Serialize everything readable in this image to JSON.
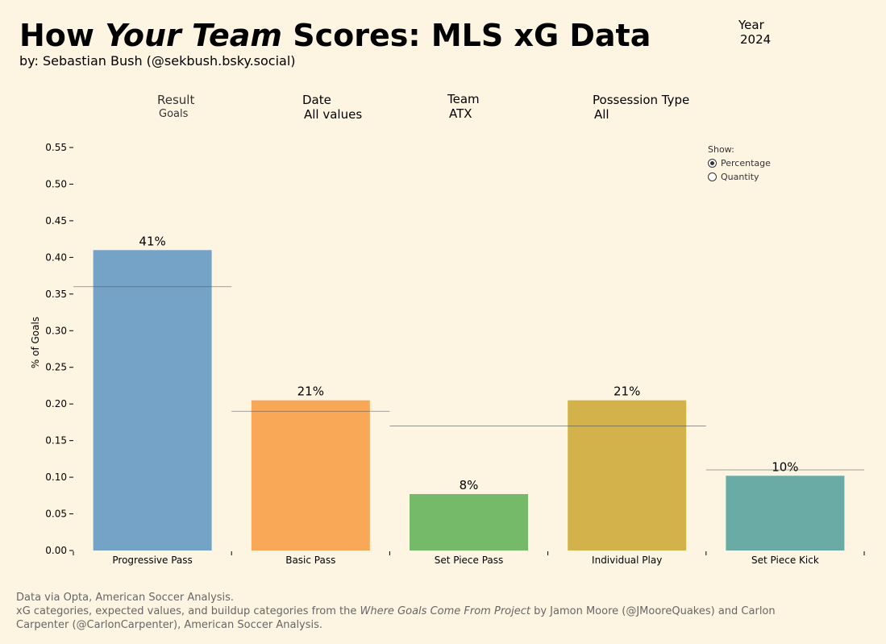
{
  "header": {
    "title_part1": "How ",
    "title_italic": "Your Team",
    "title_part2": "  Scores: MLS xG Data",
    "byline": "by: Sebastian Bush (@sekbush.bsky.social)"
  },
  "filters": {
    "year": {
      "label": "Year",
      "value": "2024"
    },
    "result": {
      "label": "Result",
      "value": "Goals"
    },
    "date": {
      "label": "Date",
      "value": "All values"
    },
    "team": {
      "label": "Team",
      "value": "ATX"
    },
    "possession": {
      "label": "Possession Type",
      "value": "All"
    }
  },
  "show_toggle": {
    "label": "Show:",
    "options": [
      "Percentage",
      "Quantity"
    ],
    "selected": "Percentage"
  },
  "chart_data": {
    "type": "bar",
    "ylabel": "% of Goals",
    "ylim": [
      0,
      0.55
    ],
    "yticks": [
      0.0,
      0.05,
      0.1,
      0.15,
      0.2,
      0.25,
      0.3,
      0.35,
      0.4,
      0.45,
      0.5,
      0.55
    ],
    "categories": [
      "Progressive Pass",
      "Basic Pass",
      "Set Piece Pass",
      "Individual Play",
      "Set Piece Kick"
    ],
    "values": [
      0.41,
      0.205,
      0.077,
      0.205,
      0.102
    ],
    "labels": [
      "41%",
      "21%",
      "8%",
      "21%",
      "10%"
    ],
    "colors": [
      "#75a3c8",
      "#f9a857",
      "#75ba68",
      "#d3b24b",
      "#6aaba6"
    ],
    "reference_lines": [
      {
        "from": 0,
        "to": 0,
        "value": 0.36
      },
      {
        "from": 1,
        "to": 1,
        "value": 0.19
      },
      {
        "from": 2,
        "to": 3,
        "value": 0.17
      },
      {
        "from": 4,
        "to": 4,
        "value": 0.11
      }
    ]
  },
  "footer": {
    "line1": "Data via Opta, American Soccer Analysis.",
    "line2_a": "xG categories, expected values, and buildup categories from the ",
    "line2_italic": "Where Goals Come From Project",
    "line2_b": " by Jamon Moore (@JMooreQuakes) and Carlon",
    "line3": "Carpenter (@CarlonCarpenter), American Soccer Analysis."
  }
}
